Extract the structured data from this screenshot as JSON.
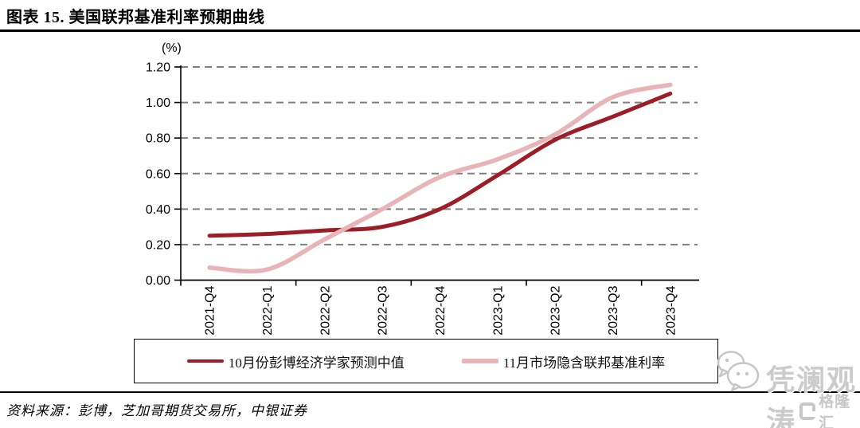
{
  "header": {
    "title": "图表 15. 美国联邦基准利率预期曲线"
  },
  "chart_data": {
    "type": "line",
    "title": "美国联邦基准利率预期曲线",
    "unit_label": "(%)",
    "xlabel": "",
    "ylabel": "%",
    "categories": [
      "2021-Q4",
      "2022-Q1",
      "2022-Q2",
      "2022-Q3",
      "2022-Q4",
      "2023-Q1",
      "2023-Q2",
      "2023-Q3",
      "2023-Q4"
    ],
    "series": [
      {
        "name": "10月份彭博经济学家预测中值",
        "color": "#9C1D26",
        "values": [
          0.25,
          0.26,
          0.28,
          0.3,
          0.4,
          0.59,
          0.79,
          0.92,
          1.05
        ]
      },
      {
        "name": "11月市场隐含联邦基准利率",
        "color": "#E8B4B7",
        "values": [
          0.07,
          0.06,
          0.23,
          0.4,
          0.58,
          0.68,
          0.82,
          1.03,
          1.1
        ]
      }
    ],
    "ylim": [
      0.0,
      1.2
    ],
    "y_ticks": [
      "0.00",
      "0.20",
      "0.40",
      "0.60",
      "0.80",
      "1.00",
      "1.20"
    ],
    "grid": "horizontal-dashed",
    "gridline_color": "#7f7f7f",
    "axis_color": "#000000",
    "legend_position": "bottom-boxed"
  },
  "footer": {
    "source": "资料来源：彭博，芝加哥期货交易所，中银证券"
  },
  "watermark": {
    "account_name": "凭澜观涛",
    "platform_name": "格隆汇"
  }
}
